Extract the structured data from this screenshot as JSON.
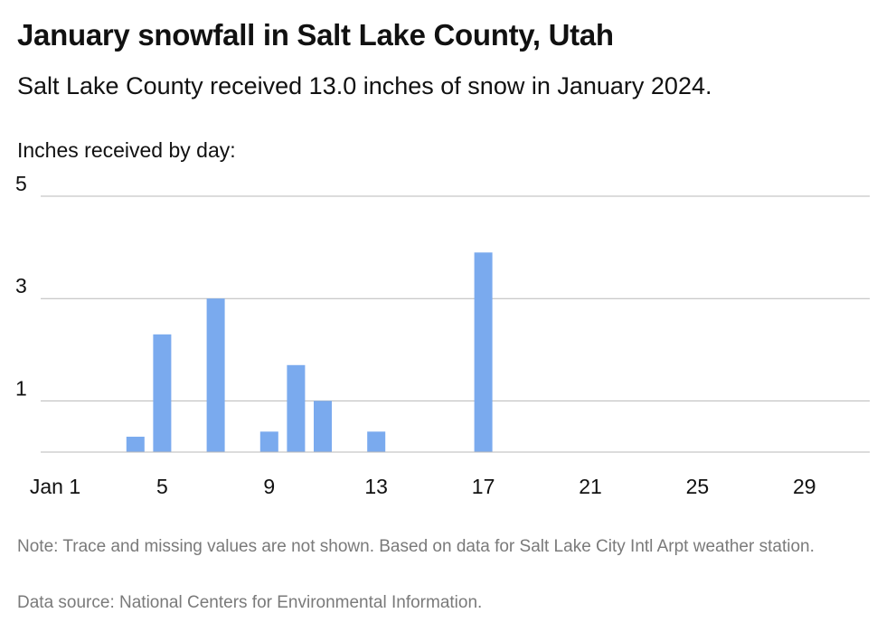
{
  "chart_data": {
    "type": "bar",
    "title": "January snowfall in Salt Lake County, Utah",
    "subtitle": "Salt Lake County received 13.0 inches of snow in January 2024.",
    "ylabel": "Inches received by day:",
    "xlabel": "",
    "x": [
      4,
      5,
      7,
      9,
      10,
      11,
      13,
      17
    ],
    "values": [
      0.3,
      2.3,
      3.0,
      0.4,
      1.7,
      1.0,
      0.4,
      3.9
    ],
    "xlim": [
      1,
      31
    ],
    "ylim": [
      0,
      5
    ],
    "yticks": [
      1,
      3,
      5
    ],
    "ytick_labels": [
      "1",
      "3",
      "5"
    ],
    "xticks": [
      1,
      5,
      9,
      13,
      17,
      21,
      25,
      29
    ],
    "xtick_labels": [
      "Jan 1",
      "5",
      "9",
      "13",
      "17",
      "21",
      "25",
      "29"
    ],
    "grid": "horizontal",
    "bar_color": "#7aaaee",
    "note": "Note: Trace and missing values are not shown. Based on data for Salt Lake City Intl Arpt weather station.",
    "source": "Data source: National Centers for Environmental Information."
  }
}
